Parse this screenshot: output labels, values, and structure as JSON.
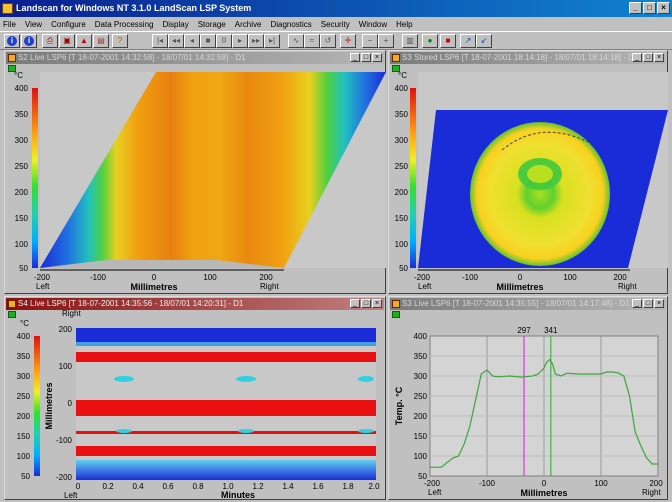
{
  "app": {
    "title": "Landscan for Windows NT 3.1.0  LandScan LSP System",
    "window_buttons": [
      "_",
      "□",
      "×"
    ]
  },
  "menu": [
    "File",
    "View",
    "Configure",
    "Data Processing",
    "Display",
    "Storage",
    "Archive",
    "Diagnostics",
    "Security",
    "Window",
    "Help"
  ],
  "toolbar": {
    "groups": [
      [
        "i",
        "ℹ"
      ],
      [
        "print",
        "camera",
        "alarm",
        "report",
        "question"
      ],
      [
        "|◄",
        "◄◄",
        "◄",
        "■",
        "||",
        "►",
        "►►",
        "►|"
      ],
      [
        "wave",
        "wave2",
        "reset",
        "cross"
      ],
      [
        "minus",
        "plus"
      ],
      [
        "list",
        "record",
        "stop"
      ],
      [
        "cursor",
        "arrow"
      ]
    ]
  },
  "colors": {
    "title_active": "#8a1010",
    "title_inactive": "#7b7b7b",
    "trace": "#3aa63a",
    "cursor1": "#d020d0",
    "cursor2": "#20b020"
  },
  "panels": {
    "p1": {
      "title": "S2 Live LSP6 [T 18-07-2001 14:32:58] - 18/07/01 14:32:58] - D1",
      "unit": "°C",
      "scale_labels": [
        "400",
        "350",
        "300",
        "250",
        "200",
        "150",
        "100",
        "50"
      ],
      "x_ticks": [
        "-200",
        "-100",
        "0",
        "100",
        "200"
      ],
      "left_label": "Left",
      "right_label": "Right",
      "x_axis_label": "Millimetres"
    },
    "p2": {
      "title": "S3 Stored LSP6 [T 18-07-2001 18:14:18] - 18/07/01 18:14:18] - D1",
      "unit": "°C",
      "scale_labels": [
        "400",
        "350",
        "300",
        "250",
        "200",
        "150",
        "100",
        "50"
      ],
      "x_ticks": [
        "-200",
        "-100",
        "0",
        "100",
        "200"
      ],
      "left_label": "Left",
      "right_label": "Right",
      "x_axis_label": "Millimetres"
    },
    "p3": {
      "title": "S4 Live LSP6 [T 18-07-2001 14:35:56 - 18/07/01 14:20:31] - D1",
      "unit": "°C",
      "right_top_label": "Right",
      "scale_labels": [
        "400",
        "350",
        "300",
        "250",
        "200",
        "150",
        "100",
        "50"
      ],
      "y_ticks": [
        "200",
        "100",
        "0",
        "-100",
        "-200"
      ],
      "y_axis_label": "Millimetres",
      "x_ticks": [
        "0",
        "0.2",
        "0.4",
        "0.6",
        "0.8",
        "1.0",
        "1.2",
        "1.4",
        "1.6",
        "1.8",
        "2.0"
      ],
      "left_label": "Left",
      "x_axis_label": "Minutes"
    },
    "p4": {
      "title": "S3 Live LSP6 [T 18-07-2001 14:35:55] - 18/07/01 14:17:48] - D1",
      "y_axis_label": "Temp. °C",
      "y_ticks": [
        "400",
        "350",
        "300",
        "250",
        "200",
        "150",
        "100",
        "50"
      ],
      "x_ticks": [
        "-200",
        "-100",
        "0",
        "100",
        "200"
      ],
      "left_label": "Left",
      "right_label": "Right",
      "x_axis_label": "Millimetres",
      "cursor1_label": "297",
      "cursor2_label": "341"
    }
  },
  "chart_data": [
    {
      "type": "line",
      "xlabel": "Millimetres",
      "ylabel": "Temp. °C",
      "xlim": [
        -200,
        200
      ],
      "ylim": [
        50,
        400
      ],
      "x": [
        -200,
        -180,
        -160,
        -150,
        -140,
        -130,
        -120,
        -110,
        -100,
        -90,
        -80,
        -60,
        -40,
        -20,
        -10,
        0,
        5,
        10,
        15,
        20,
        30,
        40,
        60,
        80,
        100,
        110,
        120,
        130,
        140,
        150,
        160,
        170,
        180,
        190,
        200
      ],
      "series": [
        {
          "values": [
            72,
            72,
            95,
            100,
            130,
            175,
            240,
            305,
            315,
            300,
            298,
            300,
            297,
            300,
            305,
            320,
            335,
            341,
            330,
            305,
            300,
            307,
            305,
            305,
            305,
            310,
            310,
            308,
            300,
            250,
            160,
            125,
            95,
            80,
            80
          ]
        }
      ],
      "cursors": [
        297,
        341
      ]
    }
  ]
}
